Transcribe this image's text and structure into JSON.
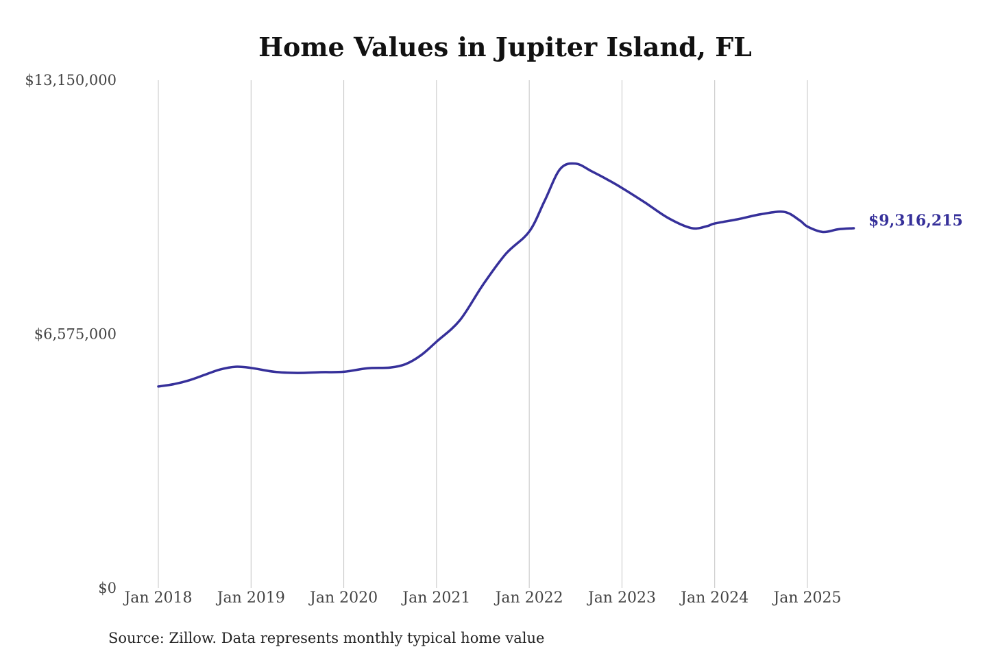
{
  "chart_data": {
    "type": "line",
    "title": "Home Values in Jupiter Island, FL",
    "source": "Source: Zillow. Data represents monthly typical home value",
    "ylim": [
      0,
      13150000
    ],
    "yticks": [
      {
        "value": 0,
        "label": "$0"
      },
      {
        "value": 6575000,
        "label": "$6,575,000"
      },
      {
        "value": 13150000,
        "label": "$13,150,000"
      }
    ],
    "xticks": [
      "Jan 2018",
      "Jan 2019",
      "Jan 2020",
      "Jan 2021",
      "Jan 2022",
      "Jan 2023",
      "Jan 2024",
      "Jan 2025"
    ],
    "xtick_dates": [
      "2018-01",
      "2019-01",
      "2020-01",
      "2021-01",
      "2022-01",
      "2023-01",
      "2024-01",
      "2025-01"
    ],
    "x_range": [
      "2018-01",
      "2025-07"
    ],
    "grid": "vertical",
    "line_color": "#36309a",
    "end_label": "$9,316,215",
    "series": [
      {
        "x": [
          "2018-01",
          "2018-03",
          "2018-05",
          "2018-07",
          "2018-09",
          "2018-11",
          "2019-01",
          "2019-04",
          "2019-07",
          "2019-10",
          "2020-01",
          "2020-04",
          "2020-07",
          "2020-09",
          "2020-11",
          "2021-01",
          "2021-04",
          "2021-07",
          "2021-10",
          "2022-01",
          "2022-03",
          "2022-05",
          "2022-07",
          "2022-09",
          "2022-11",
          "2023-01",
          "2023-04",
          "2023-07",
          "2023-10",
          "2023-12",
          "2024-01",
          "2024-04",
          "2024-07",
          "2024-10",
          "2024-12",
          "2025-01",
          "2025-03",
          "2025-05",
          "2025-07"
        ],
        "values": [
          5220000,
          5280000,
          5380000,
          5520000,
          5660000,
          5730000,
          5700000,
          5600000,
          5570000,
          5590000,
          5600000,
          5690000,
          5710000,
          5800000,
          6030000,
          6380000,
          6930000,
          7850000,
          8660000,
          9230000,
          10030000,
          10850000,
          10990000,
          10800000,
          10590000,
          10360000,
          9980000,
          9580000,
          9320000,
          9370000,
          9440000,
          9550000,
          9680000,
          9740000,
          9520000,
          9360000,
          9220000,
          9290000,
          9316215
        ]
      }
    ]
  }
}
